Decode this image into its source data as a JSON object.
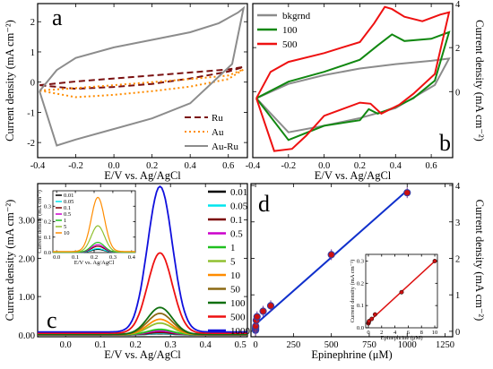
{
  "chart_data": [
    {
      "panel": "a",
      "type": "line",
      "xlabel": "E/V vs. Ag/AgCl",
      "ylabel": "Current density (mA cm⁻²)",
      "xlim": [
        -0.4,
        0.7
      ],
      "ylim": [
        -2.5,
        2.6
      ],
      "xticks": [
        -0.4,
        -0.2,
        0.0,
        0.2,
        0.4,
        0.6
      ],
      "xticklabels": [
        "-0.4",
        "-0.2",
        "0.0",
        "0.2",
        "0.4",
        "0.6"
      ],
      "yticks": [
        -2,
        -1,
        0,
        1,
        2
      ],
      "yticklabels": [
        "-2",
        "-1",
        "0",
        "1",
        "2"
      ],
      "legend_position": "bottom-right",
      "series": [
        {
          "name": "Ru",
          "color": "#7a1010",
          "dash": "7,4",
          "x": [
            -0.39,
            -0.2,
            0.0,
            0.2,
            0.4,
            0.6,
            0.68,
            0.6,
            0.4,
            0.2,
            0.0,
            -0.2,
            -0.39
          ],
          "y": [
            -0.1,
            0.02,
            0.12,
            0.22,
            0.32,
            0.42,
            0.5,
            0.35,
            0.12,
            -0.06,
            -0.16,
            -0.22,
            -0.1
          ]
        },
        {
          "name": "Au",
          "color": "#ff8c00",
          "dash": "2,3",
          "x": [
            -0.39,
            -0.2,
            0.0,
            0.2,
            0.4,
            0.6,
            0.68,
            0.6,
            0.4,
            0.2,
            0.0,
            -0.2,
            -0.39
          ],
          "y": [
            -0.28,
            -0.2,
            -0.1,
            0.0,
            0.1,
            0.22,
            0.42,
            0.1,
            -0.15,
            -0.3,
            -0.42,
            -0.5,
            -0.28
          ]
        },
        {
          "name": "Au-Ru",
          "color": "#8c8c8c",
          "dash": "",
          "x": [
            -0.39,
            -0.3,
            -0.2,
            0.0,
            0.2,
            0.4,
            0.55,
            0.65,
            0.68,
            0.62,
            0.4,
            0.2,
            0.0,
            -0.2,
            -0.3,
            -0.39
          ],
          "y": [
            -0.3,
            0.4,
            0.8,
            1.15,
            1.4,
            1.65,
            1.95,
            2.3,
            2.45,
            0.6,
            -0.7,
            -1.2,
            -1.55,
            -1.9,
            -2.1,
            -0.3
          ]
        }
      ]
    },
    {
      "panel": "b",
      "type": "line",
      "xlabel": "E/V vs. Ag/AgCl",
      "ylabel": "Current density (mA cm⁻²)",
      "xlim": [
        -0.4,
        0.72
      ],
      "ylim": [
        -3.0,
        4.0
      ],
      "xticks": [
        -0.4,
        -0.2,
        0.0,
        0.2,
        0.4,
        0.6
      ],
      "xticklabels": [
        "-0.4",
        "-0.2",
        "0.0",
        "0.2",
        "0.4",
        "0.6"
      ],
      "yticks": [
        0,
        2,
        4
      ],
      "yticklabels": [
        "0",
        "2",
        "4"
      ],
      "legend_position": "top-left",
      "series": [
        {
          "name": "bkgrnd",
          "color": "#8c8c8c",
          "x": [
            -0.38,
            -0.2,
            0.0,
            0.2,
            0.4,
            0.6,
            0.7,
            0.62,
            0.4,
            0.2,
            0.0,
            -0.2,
            -0.38
          ],
          "y": [
            -0.3,
            0.35,
            0.75,
            1.05,
            1.25,
            1.4,
            1.5,
            0.3,
            -0.75,
            -1.2,
            -1.55,
            -1.85,
            -0.3
          ]
        },
        {
          "name": "100",
          "color": "#118811",
          "x": [
            -0.38,
            -0.2,
            0.0,
            0.2,
            0.3,
            0.38,
            0.45,
            0.6,
            0.7,
            0.62,
            0.5,
            0.4,
            0.3,
            0.25,
            0.2,
            0.0,
            -0.2,
            -0.38
          ],
          "y": [
            -0.3,
            0.45,
            0.9,
            1.45,
            2.1,
            2.6,
            2.3,
            2.4,
            2.7,
            0.5,
            -0.3,
            -0.7,
            -1.0,
            -0.8,
            -1.3,
            -1.55,
            -2.2,
            -0.3
          ]
        },
        {
          "name": "500",
          "color": "#ee1111",
          "x": [
            -0.38,
            -0.3,
            -0.2,
            0.0,
            0.1,
            0.2,
            0.28,
            0.34,
            0.38,
            0.45,
            0.55,
            0.65,
            0.7,
            0.62,
            0.5,
            0.42,
            0.32,
            0.26,
            0.2,
            0.1,
            0.0,
            -0.1,
            -0.18,
            -0.28,
            -0.38
          ],
          "y": [
            -0.3,
            0.9,
            1.35,
            1.75,
            2.0,
            2.25,
            3.1,
            3.85,
            3.75,
            3.4,
            3.2,
            3.5,
            3.6,
            0.8,
            -0.1,
            -0.6,
            -1.0,
            -0.55,
            -0.5,
            -0.8,
            -1.1,
            -2.0,
            -2.6,
            -2.7,
            -0.3
          ]
        }
      ]
    },
    {
      "panel": "c",
      "type": "line",
      "xlabel": "E/V vs. Ag/AgCl",
      "ylabel": "Current density (mA cm⁻²)",
      "xlim": [
        -0.08,
        0.52
      ],
      "ylim": [
        -0.05,
        3.95
      ],
      "xticks": [
        0.0,
        0.1,
        0.2,
        0.3,
        0.4,
        0.5
      ],
      "xticklabels": [
        "0.0",
        "0.1",
        "0.2",
        "0.3",
        "0.4",
        "0.5"
      ],
      "yticks": [
        0.0,
        1.0,
        2.0,
        3.0
      ],
      "yticklabels": [
        "0.00",
        "1.00",
        "2.00",
        "3.00"
      ],
      "legend_position": "right",
      "peak_center": 0.27,
      "series": [
        {
          "name": "0.01",
          "color": "#000000",
          "peak": 0.03
        },
        {
          "name": "0.05",
          "color": "#00e5ee",
          "peak": 0.04
        },
        {
          "name": "0.1",
          "color": "#7a0000",
          "peak": 0.06
        },
        {
          "name": "0.5",
          "color": "#cc00cc",
          "peak": 0.1
        },
        {
          "name": "1",
          "color": "#20c020",
          "peak": 0.14
        },
        {
          "name": "5",
          "color": "#90c030",
          "peak": 0.3
        },
        {
          "name": "10",
          "color": "#ff8c00",
          "peak": 0.4
        },
        {
          "name": "50",
          "color": "#8b6914",
          "peak": 0.55
        },
        {
          "name": "100",
          "color": "#107010",
          "peak": 0.7
        },
        {
          "name": "500",
          "color": "#ee1111",
          "peak": 2.1
        },
        {
          "name": "1000",
          "color": "#1010dd",
          "peak": 3.8
        }
      ],
      "inset": {
        "xlabel": "E/V vs. Ag/AgCl",
        "ylabel": "Current density (mA cm⁻²)",
        "xlim": [
          -0.02,
          0.42
        ],
        "ylim": [
          0,
          0.4
        ],
        "xticks": [
          0.0,
          0.1,
          0.2,
          0.3,
          0.4
        ],
        "xticklabels": [
          "0.0",
          "0.1",
          "0.2",
          "0.3",
          "0.4"
        ],
        "yticks": [
          0.0,
          0.1,
          0.2,
          0.3
        ],
        "yticklabels": [
          "0.0",
          "0.1",
          "0.2",
          "0.3"
        ],
        "peak_center": 0.22,
        "series": [
          {
            "name": "0.01",
            "color": "#000000",
            "peak": 0.02
          },
          {
            "name": "0.05",
            "color": "#00e5ee",
            "peak": 0.025
          },
          {
            "name": "0.1",
            "color": "#7a0000",
            "peak": 0.04
          },
          {
            "name": "0.5",
            "color": "#cc00cc",
            "peak": 0.05
          },
          {
            "name": "1",
            "color": "#20c020",
            "peak": 0.065
          },
          {
            "name": "5",
            "color": "#90c030",
            "peak": 0.17
          },
          {
            "name": "10",
            "color": "#ff8c00",
            "peak": 0.35
          }
        ]
      }
    },
    {
      "panel": "d",
      "type": "scatter",
      "xlabel": "Epinephrine (μM)",
      "ylabel": "Current density (mA cm⁻²)",
      "xlim": [
        -30,
        1300
      ],
      "ylim": [
        -0.15,
        4.05
      ],
      "xticks": [
        0,
        250,
        500,
        750,
        1000,
        1250
      ],
      "xticklabels": [
        "0",
        "250",
        "500",
        "750",
        "1000",
        "1250"
      ],
      "yticks": [
        0,
        1,
        2,
        3,
        4
      ],
      "yticklabels": [
        "0",
        "1",
        "2",
        "3",
        "4"
      ],
      "fit_color": "#1030cc",
      "point_color": "#cc1111",
      "x": [
        0.01,
        0.05,
        0.1,
        0.5,
        1,
        5,
        10,
        50,
        100,
        500,
        1000
      ],
      "y": [
        0.03,
        0.04,
        0.06,
        0.1,
        0.14,
        0.3,
        0.4,
        0.55,
        0.7,
        2.1,
        3.8
      ],
      "inset": {
        "xlabel": "Epinephrine (μM)",
        "ylabel": "Current density (mA cm⁻²)",
        "xlim": [
          -0.4,
          10.4
        ],
        "ylim": [
          0,
          0.33
        ],
        "xticks": [
          0,
          2,
          4,
          6,
          8,
          10
        ],
        "xticklabels": [
          "0",
          "2",
          "4",
          "6",
          "8",
          "10"
        ],
        "yticks": [
          0.0,
          0.1,
          0.2,
          0.3
        ],
        "yticklabels": [
          "0.0",
          "0.1",
          "0.2",
          "0.3"
        ],
        "fit_color": "#dd1111",
        "point_color": "#cc1111",
        "x": [
          0.01,
          0.05,
          0.1,
          0.5,
          1,
          5,
          10
        ],
        "y": [
          0.02,
          0.025,
          0.03,
          0.04,
          0.06,
          0.16,
          0.3
        ]
      }
    }
  ]
}
